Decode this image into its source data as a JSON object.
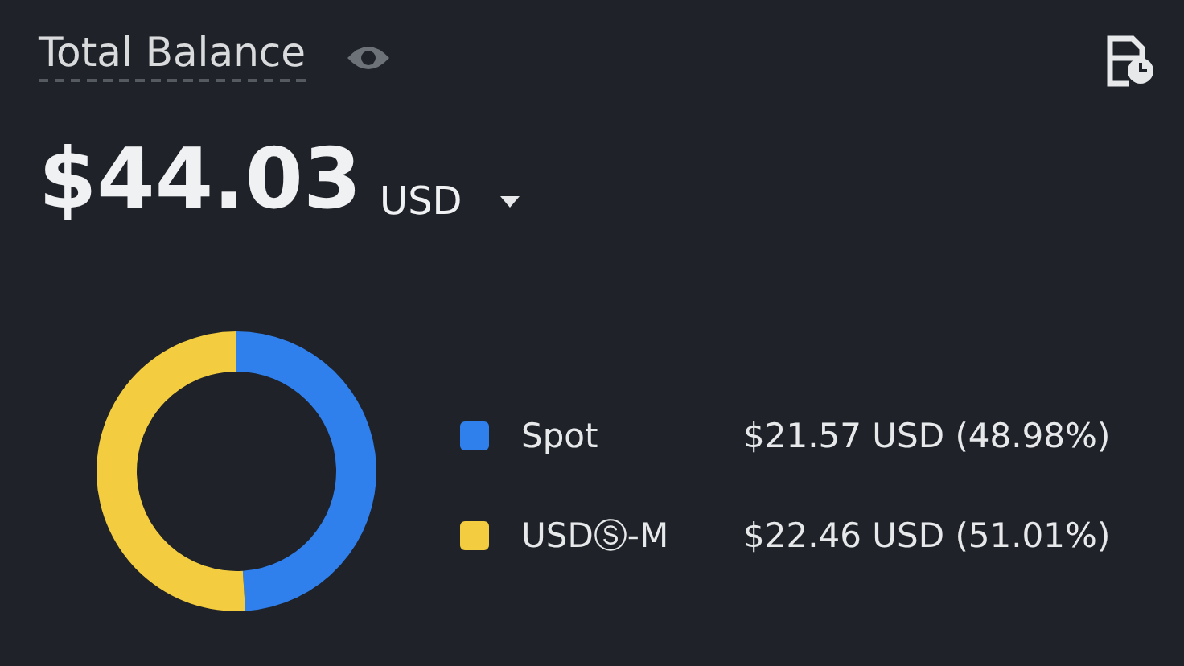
{
  "chart_data": {
    "type": "donut",
    "title": "Total Balance",
    "subtitle": "$44.03",
    "annotations": [
      "USD"
    ],
    "categories": [
      "Spot",
      "USDⓈ-M"
    ],
    "values": [
      21.57,
      22.46
    ],
    "colors": [
      "#2f80ed",
      "#f3cd3f"
    ],
    "value_labels": [
      "$21.57 USD (48.98%)",
      "$22.46 USD (51.01%)"
    ],
    "legend": "right"
  }
}
